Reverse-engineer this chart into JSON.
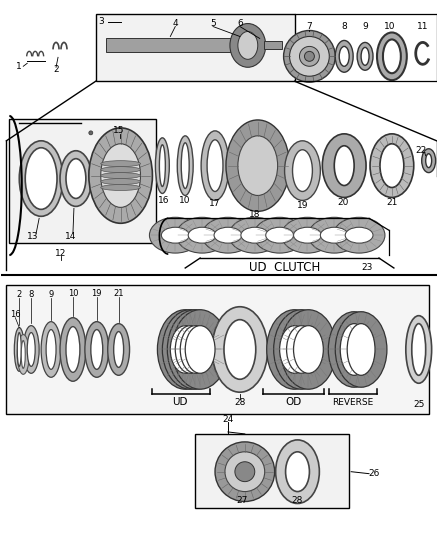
{
  "bg_color": "#ffffff",
  "lc": "#000000",
  "gc": "#888888",
  "dc": "#555555",
  "fc": "#cccccc",
  "figsize": [
    4.38,
    5.33
  ],
  "dpi": 100,
  "ud_clutch_label": "UD  CLUTCH",
  "ud_label": "UD",
  "od_label": "OD",
  "reverse_label": "REVERSE",
  "labels": {
    "1": "1",
    "2": "2",
    "3": "3",
    "4": "4",
    "5": "5",
    "6": "6",
    "7": "7",
    "8": "8",
    "9": "9",
    "10": "10",
    "11": "11",
    "12": "12",
    "13": "13",
    "14": "14",
    "15": "15",
    "16": "16",
    "17": "17",
    "18": "18",
    "19": "19",
    "20": "20",
    "21": "21",
    "22": "22",
    "23": "23",
    "24": "24",
    "25": "25",
    "26": "26",
    "27": "27",
    "28": "28"
  }
}
